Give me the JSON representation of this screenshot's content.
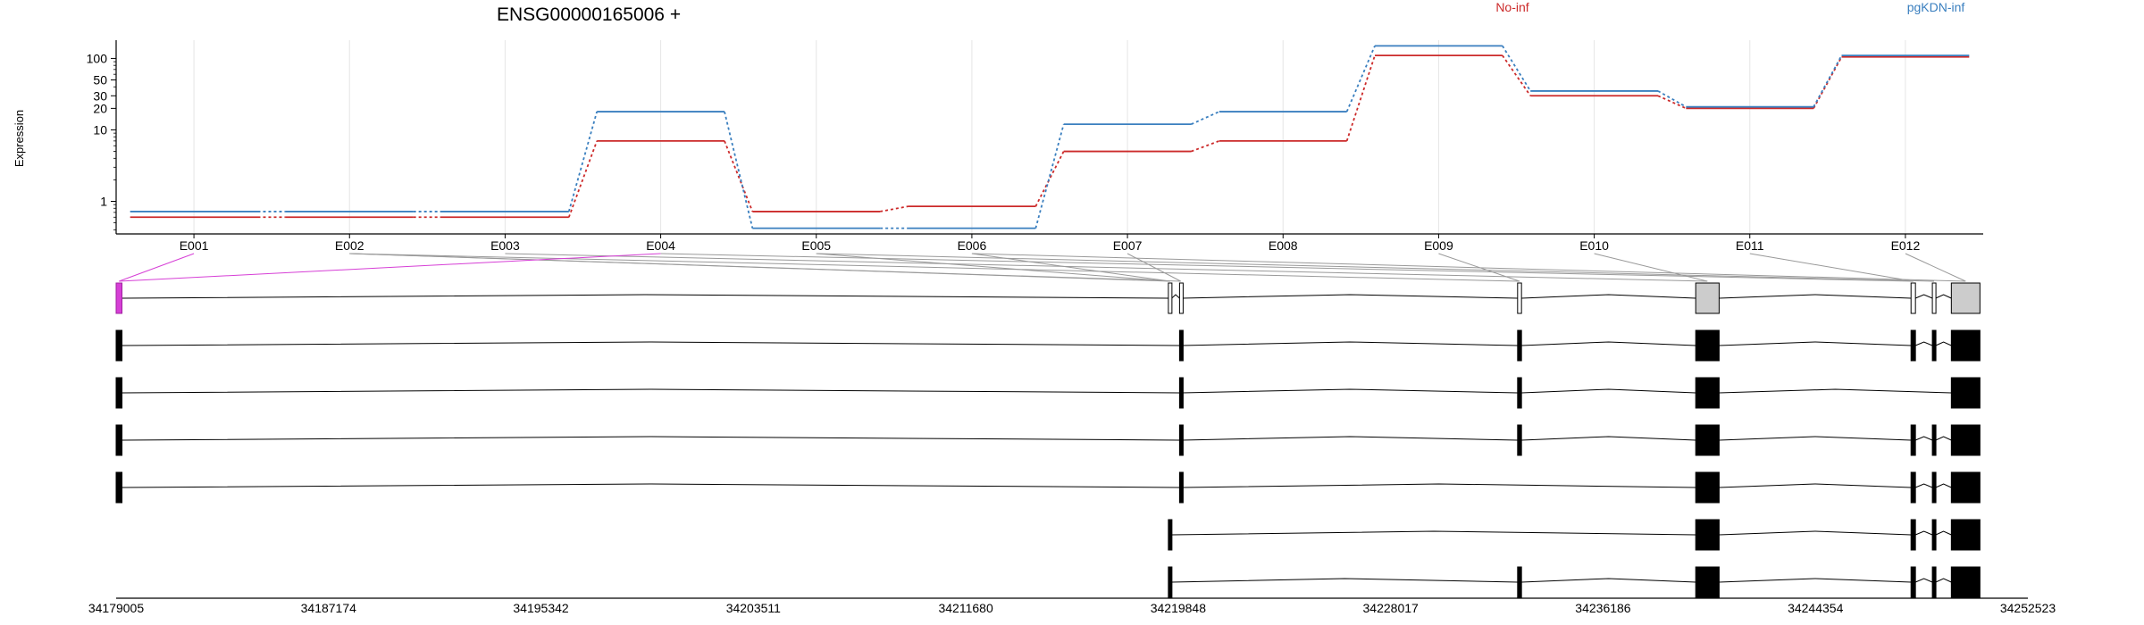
{
  "chart_data": {
    "type": "line",
    "title": "ENSG00000165006 +",
    "ylabel": "Expression",
    "y_scale": "log",
    "y_ticks": [
      "1",
      "10",
      "20",
      "30",
      "50",
      "100"
    ],
    "y_tick_values": [
      1,
      10,
      20,
      30,
      50,
      100
    ],
    "ylim": [
      0.35,
      180
    ],
    "categories": [
      "E001",
      "E002",
      "E003",
      "E004",
      "E005",
      "E006",
      "E007",
      "E008",
      "E009",
      "E010",
      "E011",
      "E012"
    ],
    "series": [
      {
        "name": "No-inf",
        "color": "#cc2a2a",
        "values": [
          0.6,
          0.6,
          0.6,
          7,
          0.72,
          0.85,
          5,
          7,
          110,
          30,
          20,
          105
        ]
      },
      {
        "name": "pgKDN-inf",
        "color": "#3a7fbf",
        "values": [
          0.72,
          0.72,
          0.72,
          18,
          0.42,
          0.42,
          12,
          18,
          150,
          35,
          21,
          110
        ]
      }
    ],
    "genomic_axis": {
      "ticks": [
        "34179005",
        "34187174",
        "34195342",
        "34203511",
        "34211680",
        "34219848",
        "34228017",
        "34236186",
        "34244354",
        "34252523"
      ]
    },
    "gene_model": {
      "exon_ranges": [
        [
          34179005,
          34179230
        ],
        [
          34219470,
          34219600
        ],
        [
          34219900,
          34219990
        ],
        [
          34232900,
          34233050
        ],
        [
          34239750,
          34240650
        ],
        [
          34248030,
          34248200
        ],
        [
          34248850,
          34248980
        ],
        [
          34249580,
          34250680
        ]
      ],
      "highlight_exon": 0,
      "exon_to_bin": [
        0,
        1,
        1,
        1,
        2,
        3,
        4,
        5,
        6,
        7,
        8,
        9,
        10,
        11
      ],
      "transcripts": [
        [
          0,
          2,
          3,
          4,
          5,
          6,
          7
        ],
        [
          0,
          2,
          3,
          4,
          7
        ],
        [
          0,
          2,
          3,
          4,
          5,
          6,
          7
        ],
        [
          0,
          2,
          4,
          5,
          6,
          7
        ],
        [
          1,
          4,
          5,
          6,
          7
        ],
        [
          1,
          3,
          4,
          5,
          6,
          7
        ]
      ]
    }
  }
}
